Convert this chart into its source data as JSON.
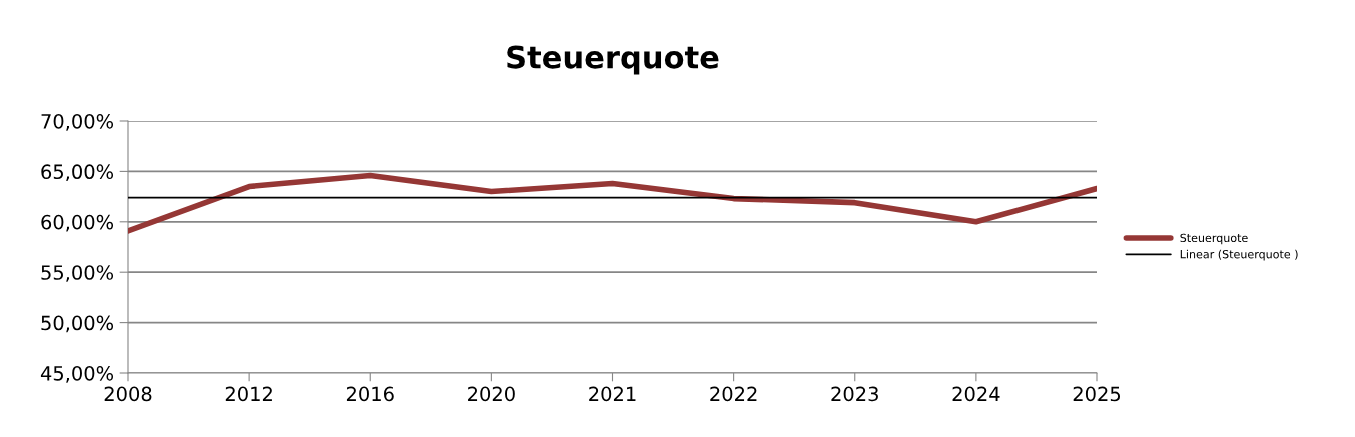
{
  "chart_data": {
    "type": "line",
    "title": "Steuerquote",
    "categories": [
      "2008",
      "2012",
      "2016",
      "2020",
      "2021",
      "2022",
      "2023",
      "2024",
      "2025"
    ],
    "series": [
      {
        "name": "Steuerquote",
        "color": "#953735",
        "values": [
          59.1,
          63.5,
          64.6,
          63.0,
          63.8,
          62.3,
          61.9,
          60.0,
          63.3
        ]
      },
      {
        "name": "Linear (Steuerquote )",
        "color": "#000000",
        "values": [
          62.4,
          62.4,
          62.4,
          62.4,
          62.4,
          62.4,
          62.4,
          62.4,
          62.4
        ]
      }
    ],
    "ylim": [
      45,
      70
    ],
    "yticks": [
      {
        "value": 45,
        "label": "45,00%"
      },
      {
        "value": 50,
        "label": "50,00%"
      },
      {
        "value": 55,
        "label": "55,00%"
      },
      {
        "value": 60,
        "label": "60,00%"
      },
      {
        "value": 65,
        "label": "65,00%"
      },
      {
        "value": 70,
        "label": "70,00%"
      }
    ],
    "grid": "y",
    "legend": "right",
    "marker": "none"
  }
}
